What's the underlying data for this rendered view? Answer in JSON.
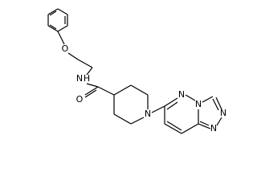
{
  "atoms": [
    "O",
    "N",
    "H",
    "O",
    "N",
    "N",
    "N",
    "N",
    "N"
  ]
}
